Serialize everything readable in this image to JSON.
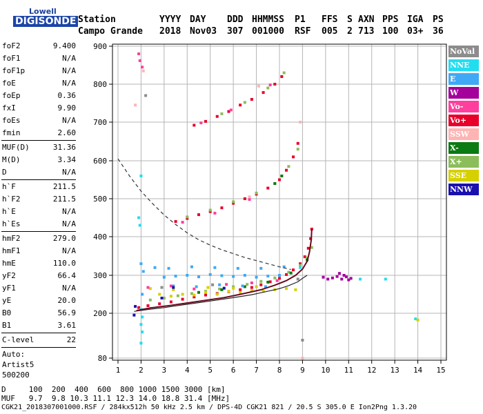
{
  "logo": {
    "line1": "Lowell",
    "line2": "DIGISONDE"
  },
  "header": {
    "labels": [
      "Station",
      "YYYY",
      "DAY",
      "DDD",
      "HHMMSS",
      "P1",
      "FFS",
      "S",
      "AXN",
      "PPS",
      "IGA",
      "PS"
    ],
    "values": [
      "Campo Grande",
      "2018",
      "Nov03",
      "307",
      "001000",
      "RSF",
      "005",
      "2",
      "713",
      "100",
      "03+",
      "36"
    ]
  },
  "params": {
    "group1": [
      {
        "label": "foF2",
        "value": "9.400"
      },
      {
        "label": "foF1",
        "value": "N/A"
      },
      {
        "label": "foF1p",
        "value": "N/A"
      },
      {
        "label": "foE",
        "value": "N/A"
      },
      {
        "label": "foEp",
        "value": "0.36"
      },
      {
        "label": "fxI",
        "value": "9.90"
      },
      {
        "label": "foEs",
        "value": "N/A"
      },
      {
        "label": "fmin",
        "value": "2.60"
      }
    ],
    "group2": [
      {
        "label": "MUF(D)",
        "value": "31.36"
      },
      {
        "label": "M(D)",
        "value": "3.34"
      },
      {
        "label": "D",
        "value": "N/A"
      }
    ],
    "group3": [
      {
        "label": "h`F",
        "value": "211.5"
      },
      {
        "label": "h`F2",
        "value": "211.5"
      },
      {
        "label": "h`E",
        "value": "N/A"
      },
      {
        "label": "h`Es",
        "value": "N/A"
      }
    ],
    "group4": [
      {
        "label": "hmF2",
        "value": "279.0"
      },
      {
        "label": "hmF1",
        "value": "N/A"
      },
      {
        "label": "hmE",
        "value": "110.0"
      },
      {
        "label": "yF2",
        "value": "66.4"
      },
      {
        "label": "yF1",
        "value": "N/A"
      },
      {
        "label": "yE",
        "value": "20.0"
      },
      {
        "label": "B0",
        "value": "56.9"
      },
      {
        "label": "B1",
        "value": "3.61"
      }
    ],
    "group5": [
      {
        "label": "C-level",
        "value": "22"
      }
    ],
    "auto": [
      "Auto:",
      "Artist5",
      "500200"
    ]
  },
  "footer": {
    "d_row": "D     100  200  400  600  800 1000 1500 3000 [km]",
    "muf_row": "MUF   9.7  9.8 10.3 11.1 12.3 14.0 18.8 31.4 [MHz]",
    "file_row": "CGK21_2018307001000.RSF / 284kx512h 50 kHz 2.5 km / DPS-4D CGK21 821 / 20.5 S 305.0 E Ion2Png 1.3.20"
  },
  "legend": [
    {
      "label": "NoVal",
      "color": "#8c8c8c"
    },
    {
      "label": "NNE",
      "color": "#22ddf0"
    },
    {
      "label": "E",
      "color": "#3fa9f5"
    },
    {
      "label": "W",
      "color": "#a4009c"
    },
    {
      "label": "Vo-",
      "color": "#ff3e9e"
    },
    {
      "label": "Vo+",
      "color": "#e8002a"
    },
    {
      "label": "SSW",
      "color": "#ffb4b4"
    },
    {
      "label": "X-",
      "color": "#0a7a12"
    },
    {
      "label": "X+",
      "color": "#8cbd5a"
    },
    {
      "label": "SSE",
      "color": "#d6d000"
    },
    {
      "label": "NNW",
      "color": "#1a10b0"
    }
  ],
  "chart_data": {
    "type": "scatter",
    "xlim": [
      1,
      15
    ],
    "ylim": [
      80,
      900
    ],
    "x_ticks": [
      "1",
      "2",
      "3",
      "4",
      "5",
      "6",
      "7",
      "8",
      "9",
      "10",
      "11",
      "12",
      "13",
      "14",
      "15"
    ],
    "y_ticks": [
      "80",
      "200",
      "300",
      "400",
      "500",
      "600",
      "700",
      "800",
      "900"
    ],
    "grid": true,
    "series": [
      {
        "name": "Vo+",
        "color": "#e8002a",
        "points": [
          [
            1.9,
            215
          ],
          [
            2.3,
            220
          ],
          [
            2.8,
            225
          ],
          [
            3.3,
            230
          ],
          [
            3.8,
            237
          ],
          [
            4.3,
            243
          ],
          [
            4.8,
            248
          ],
          [
            5.3,
            252
          ],
          [
            5.8,
            257
          ],
          [
            6.3,
            262
          ],
          [
            6.8,
            268
          ],
          [
            7.2,
            275
          ],
          [
            7.6,
            283
          ],
          [
            8.0,
            292
          ],
          [
            8.3,
            302
          ],
          [
            8.6,
            314
          ],
          [
            8.9,
            330
          ],
          [
            9.1,
            348
          ],
          [
            9.25,
            370
          ],
          [
            9.35,
            395
          ],
          [
            9.4,
            420
          ],
          [
            3.5,
            440
          ],
          [
            4.0,
            448
          ],
          [
            4.5,
            458
          ],
          [
            5.0,
            466
          ],
          [
            5.5,
            476
          ],
          [
            6.0,
            488
          ],
          [
            6.5,
            500
          ],
          [
            7.0,
            512
          ],
          [
            7.5,
            528
          ],
          [
            8.0,
            550
          ],
          [
            8.3,
            575
          ],
          [
            8.6,
            610
          ],
          [
            8.8,
            645
          ],
          [
            4.3,
            692
          ],
          [
            4.8,
            702
          ],
          [
            5.3,
            715
          ],
          [
            5.8,
            728
          ],
          [
            6.3,
            745
          ],
          [
            6.8,
            760
          ],
          [
            7.3,
            778
          ],
          [
            7.8,
            800
          ],
          [
            8.1,
            820
          ]
        ]
      },
      {
        "name": "X+",
        "color": "#8cbd5a",
        "points": [
          [
            2.4,
            235
          ],
          [
            3.0,
            240
          ],
          [
            3.6,
            246
          ],
          [
            4.2,
            252
          ],
          [
            4.8,
            258
          ],
          [
            5.4,
            264
          ],
          [
            6.0,
            270
          ],
          [
            6.6,
            276
          ],
          [
            7.2,
            284
          ],
          [
            7.8,
            293
          ],
          [
            8.4,
            308
          ],
          [
            8.9,
            326
          ],
          [
            9.2,
            345
          ],
          [
            9.4,
            372
          ],
          [
            4.0,
            452
          ],
          [
            5.0,
            470
          ],
          [
            6.0,
            492
          ],
          [
            7.0,
            515
          ],
          [
            7.8,
            540
          ],
          [
            8.4,
            585
          ],
          [
            8.8,
            630
          ],
          [
            5.5,
            722
          ],
          [
            6.5,
            752
          ],
          [
            7.5,
            790
          ],
          [
            8.2,
            830
          ]
        ]
      },
      {
        "name": "X-",
        "color": "#0a7a12",
        "points": [
          [
            4.5,
            255
          ],
          [
            5.5,
            262
          ],
          [
            6.5,
            270
          ],
          [
            7.5,
            282
          ],
          [
            8.5,
            306
          ],
          [
            9.2,
            340
          ],
          [
            7.8,
            540
          ],
          [
            8.1,
            560
          ]
        ]
      },
      {
        "name": "E",
        "color": "#3fa9f5",
        "points": [
          [
            3.0,
            295
          ],
          [
            3.5,
            298
          ],
          [
            4.0,
            300
          ],
          [
            4.5,
            296
          ],
          [
            5.0,
            302
          ],
          [
            5.5,
            299
          ],
          [
            6.0,
            297
          ],
          [
            6.5,
            300
          ],
          [
            7.0,
            295
          ],
          [
            7.5,
            298
          ],
          [
            8.0,
            300
          ],
          [
            2.6,
            320
          ],
          [
            3.2,
            318
          ],
          [
            4.2,
            322
          ],
          [
            5.2,
            320
          ],
          [
            6.2,
            318
          ],
          [
            7.2,
            318
          ],
          [
            8.2,
            322
          ],
          [
            3.4,
            272
          ],
          [
            4.4,
            270
          ],
          [
            5.4,
            275
          ],
          [
            6.4,
            272
          ],
          [
            7.4,
            270
          ],
          [
            2.0,
            330
          ],
          [
            2.1,
            310
          ],
          [
            2.05,
            250
          ]
        ]
      },
      {
        "name": "NNE",
        "color": "#22ddf0",
        "points": [
          [
            2.0,
            210
          ],
          [
            2.05,
            190
          ],
          [
            2.0,
            170
          ],
          [
            2.05,
            150
          ],
          [
            2.0,
            120
          ],
          [
            1.9,
            450
          ],
          [
            1.95,
            430
          ],
          [
            2.0,
            560
          ],
          [
            8.9,
            320
          ],
          [
            11.5,
            290
          ],
          [
            12.6,
            290
          ],
          [
            13.9,
            185
          ]
        ]
      },
      {
        "name": "SSE",
        "color": "#d6d000",
        "points": [
          [
            2.8,
            250
          ],
          [
            3.3,
            245
          ],
          [
            3.8,
            250
          ],
          [
            4.3,
            248
          ],
          [
            4.8,
            255
          ],
          [
            5.3,
            250
          ],
          [
            5.8,
            258
          ],
          [
            6.3,
            255
          ],
          [
            6.8,
            260
          ],
          [
            7.3,
            258
          ],
          [
            7.8,
            262
          ],
          [
            8.3,
            265
          ],
          [
            8.7,
            262
          ],
          [
            2.4,
            265
          ],
          [
            3.4,
            262
          ],
          [
            4.9,
            268
          ],
          [
            6.0,
            266
          ],
          [
            7.0,
            270
          ],
          [
            14.0,
            182
          ]
        ]
      },
      {
        "name": "W",
        "color": "#a4009c",
        "points": [
          [
            9.9,
            295
          ],
          [
            10.1,
            290
          ],
          [
            10.3,
            293
          ],
          [
            10.5,
            297
          ],
          [
            10.7,
            290
          ],
          [
            10.9,
            296
          ],
          [
            11.1,
            292
          ],
          [
            10.6,
            305
          ],
          [
            10.8,
            300
          ],
          [
            11.0,
            288
          ]
        ]
      },
      {
        "name": "Vo-",
        "color": "#ff3e9e",
        "points": [
          [
            2.3,
            268
          ],
          [
            3.3,
            272
          ],
          [
            4.3,
            264
          ],
          [
            5.7,
            276
          ],
          [
            6.8,
            280
          ],
          [
            7.9,
            286
          ],
          [
            1.9,
            880
          ],
          [
            1.95,
            862
          ],
          [
            2.05,
            845
          ],
          [
            4.6,
            698
          ],
          [
            5.9,
            732
          ],
          [
            7.6,
            798
          ],
          [
            3.8,
            438
          ],
          [
            5.2,
            462
          ],
          [
            6.7,
            498
          ]
        ]
      },
      {
        "name": "NNW",
        "color": "#1a10b0",
        "points": [
          [
            1.75,
            218
          ],
          [
            1.7,
            195
          ],
          [
            3.4,
            268
          ],
          [
            5.6,
            266
          ],
          [
            2.9,
            240
          ]
        ]
      },
      {
        "name": "SSW",
        "color": "#ffb4b4",
        "points": [
          [
            1.75,
            745
          ],
          [
            2.1,
            835
          ],
          [
            6.7,
            505
          ],
          [
            7.1,
            795
          ],
          [
            8.9,
            700
          ],
          [
            9.0,
            80
          ]
        ]
      },
      {
        "name": "NoVal",
        "color": "#8c8c8c",
        "points": [
          [
            2.2,
            770
          ],
          [
            2.9,
            268
          ],
          [
            5.1,
            275
          ],
          [
            8.8,
            290
          ],
          [
            9.0,
            128
          ]
        ]
      }
    ],
    "trace_solid": [
      [
        1.7,
        205
      ],
      [
        2.3,
        210
      ],
      [
        3.0,
        215
      ],
      [
        3.8,
        222
      ],
      [
        4.5,
        228
      ],
      [
        5.2,
        234
      ],
      [
        6.0,
        241
      ],
      [
        6.8,
        249
      ],
      [
        7.5,
        258
      ],
      [
        8.0,
        265
      ],
      [
        8.4,
        273
      ],
      [
        8.8,
        283
      ],
      [
        9.0,
        292
      ],
      [
        9.2,
        300
      ]
    ],
    "trace_solid_red": [
      [
        1.8,
        207
      ],
      [
        2.4,
        214
      ],
      [
        3.2,
        220
      ],
      [
        4.0,
        227
      ],
      [
        4.8,
        234
      ],
      [
        5.6,
        241
      ],
      [
        6.4,
        251
      ],
      [
        7.2,
        262
      ],
      [
        7.8,
        274
      ],
      [
        8.3,
        286
      ],
      [
        8.7,
        300
      ],
      [
        9.0,
        316
      ],
      [
        9.2,
        336
      ],
      [
        9.3,
        360
      ],
      [
        9.38,
        392
      ],
      [
        9.4,
        420
      ]
    ],
    "trace_dashed": [
      [
        1.0,
        605
      ],
      [
        1.5,
        560
      ],
      [
        2.0,
        520
      ],
      [
        2.5,
        487
      ],
      [
        3.0,
        457
      ],
      [
        3.5,
        432
      ],
      [
        4.0,
        410
      ],
      [
        4.5,
        392
      ],
      [
        5.0,
        378
      ],
      [
        5.5,
        366
      ],
      [
        6.0,
        356
      ],
      [
        6.5,
        346
      ],
      [
        7.0,
        338
      ],
      [
        7.5,
        330
      ],
      [
        8.0,
        322
      ],
      [
        8.5,
        315
      ]
    ]
  }
}
